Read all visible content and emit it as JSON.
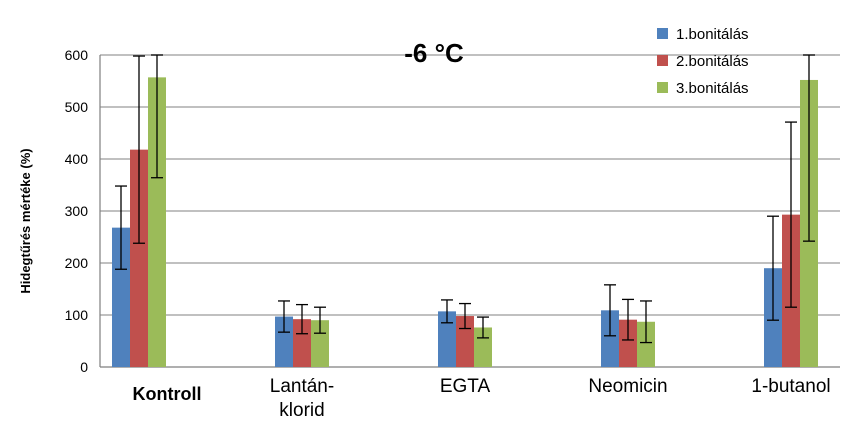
{
  "chart_data": {
    "type": "bar",
    "title": "-6 °C",
    "ylabel": "Hidegtűrés mértéke (%)",
    "xlabel": "",
    "ylim": [
      0,
      600
    ],
    "yticks": [
      0,
      100,
      200,
      300,
      400,
      500,
      600
    ],
    "grid": true,
    "legend_position": "top-right",
    "categories": [
      "Kontroll",
      "Lantán-klorid",
      "EGTA",
      "Neomicin",
      "1-butanol"
    ],
    "category_label_lines": [
      [
        "Kontroll"
      ],
      [
        "Lantán-",
        "klorid"
      ],
      [
        "EGTA"
      ],
      [
        "Neomicin"
      ],
      [
        "1-butanol"
      ]
    ],
    "series": [
      {
        "name": "1.bonitálás",
        "color": "#4f81bd",
        "values": [
          268,
          97,
          107,
          109,
          190
        ],
        "errors": [
          80,
          30,
          22,
          49,
          100
        ]
      },
      {
        "name": "2.bonitálás",
        "color": "#c0504d",
        "values": [
          418,
          92,
          98,
          91,
          293
        ],
        "errors": [
          180,
          28,
          24,
          39,
          178
        ]
      },
      {
        "name": "3.bonitálás",
        "color": "#9bbb59",
        "values": [
          557,
          90,
          76,
          87,
          552
        ],
        "errors": [
          193,
          25,
          20,
          40,
          310
        ]
      }
    ]
  }
}
